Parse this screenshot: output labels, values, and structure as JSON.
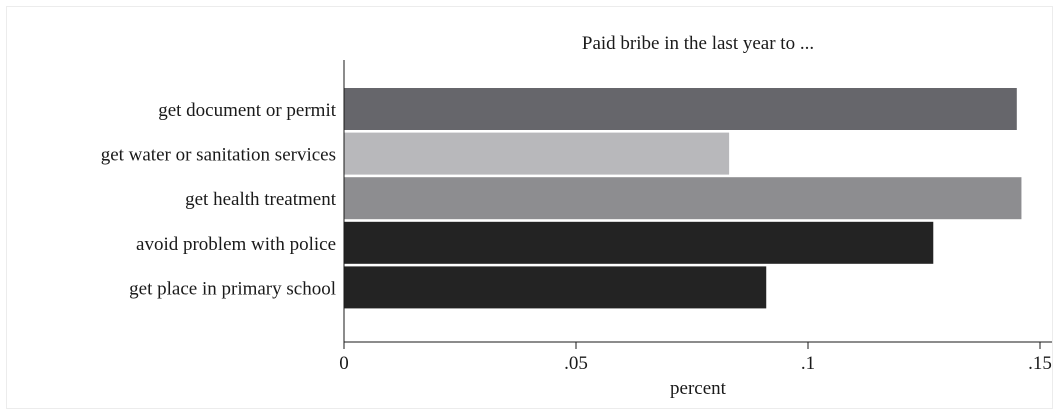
{
  "chart_data": {
    "type": "bar",
    "orientation": "horizontal",
    "title": "Paid bribe in the last year to ...",
    "xlabel": "percent",
    "ylabel": "",
    "categories": [
      "get document or permit",
      "get water or sanitation services",
      "get health treatment",
      "avoid problem with police",
      "get place in primary school"
    ],
    "values": [
      0.145,
      0.083,
      0.146,
      0.127,
      0.091
    ],
    "colors": [
      "#66666b",
      "#b8b8bb",
      "#8d8d90",
      "#232323",
      "#232323"
    ],
    "xlim": [
      0,
      0.15
    ],
    "xticks": [
      0,
      0.05,
      0.1,
      0.15
    ],
    "xtick_labels": [
      "0",
      ".05",
      ".1",
      ".15"
    ],
    "grid": false,
    "legend": "none"
  }
}
